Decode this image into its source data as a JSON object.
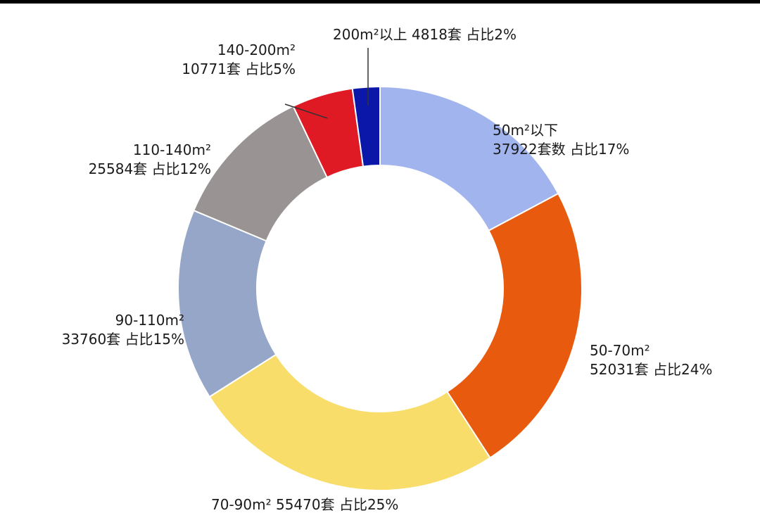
{
  "chart_data": {
    "type": "pie",
    "style": "donut",
    "title": "",
    "start_angle_deg": 0,
    "direction": "clockwise",
    "categories": [
      "50m²以下",
      "50-70m²",
      "70-90m²",
      "90-110m²",
      "110-140m²",
      "140-200m²",
      "200m²以上"
    ],
    "values": [
      37922,
      52031,
      55470,
      33760,
      25584,
      10771,
      4818
    ],
    "percent_labels": [
      "17%",
      "24%",
      "25%",
      "15%",
      "12%",
      "5%",
      "2%"
    ],
    "colors": [
      "#a2b4ee",
      "#e85a0e",
      "#f9dd6a",
      "#95a6c8",
      "#999393",
      "#e01a24",
      "#0a17a8"
    ],
    "labels": [
      {
        "line1": "50m²以下",
        "line2": "37922套数 占比17%"
      },
      {
        "line1": "50-70m²",
        "line2": "52031套 占比24%"
      },
      {
        "line1": "70-90m² 55470套 占比25%",
        "line2": ""
      },
      {
        "line1": "90-110m²",
        "line2": "33760套 占比15%"
      },
      {
        "line1": "110-140m²",
        "line2": "25584套 占比12%"
      },
      {
        "line1": "140-200m²",
        "line2": "10771套 占比5%"
      },
      {
        "line1": "200m²以上 4818套 占比2%",
        "line2": ""
      }
    ]
  }
}
